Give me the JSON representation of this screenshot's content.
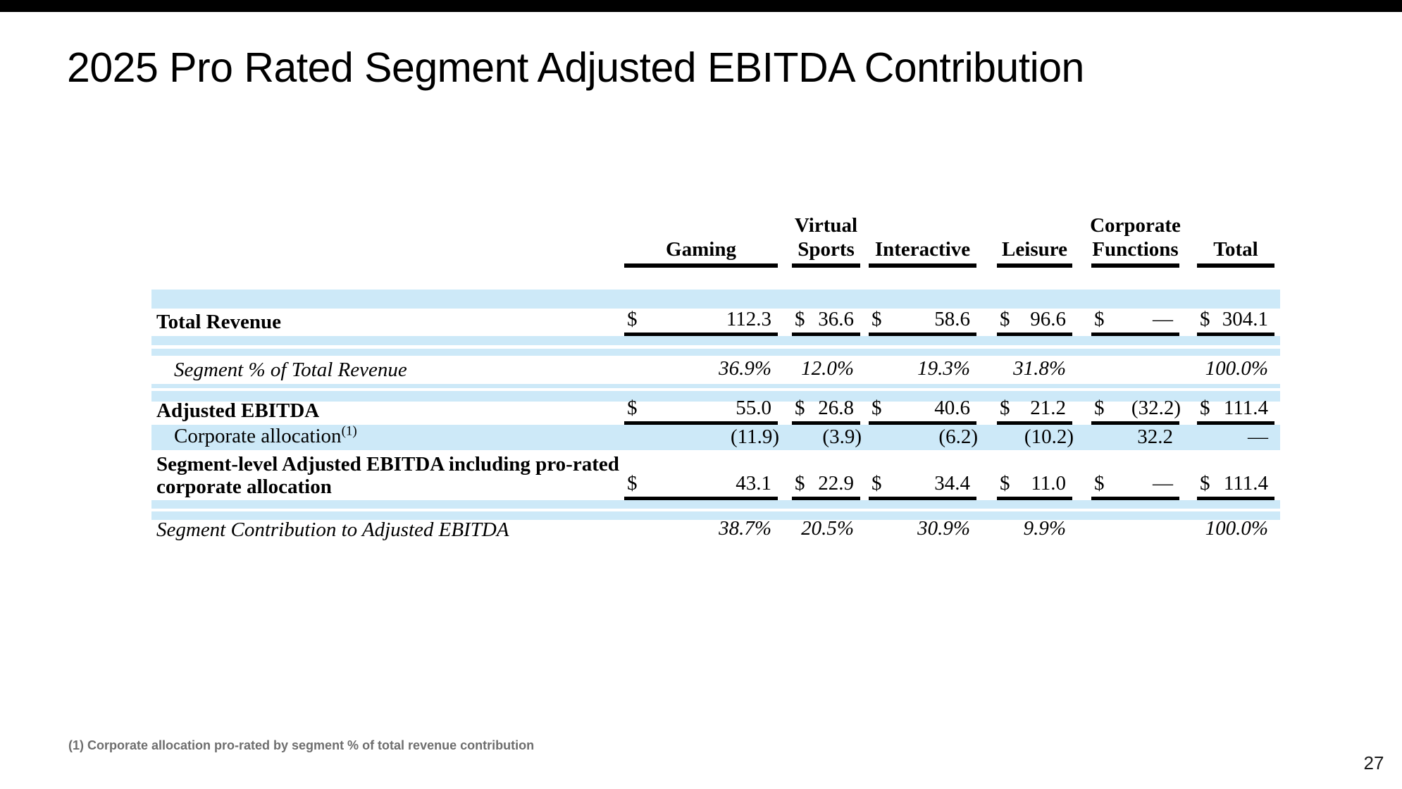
{
  "slide": {
    "title": "2025 Pro Rated Segment Adjusted EBITDA Contribution",
    "footnote": "(1) Corporate allocation pro-rated by segment % of total revenue contribution",
    "page_number": "27"
  },
  "colors": {
    "row_band_blue": "#cde9f8",
    "top_bar": "#000000",
    "rule_black": "#000000",
    "footnote_gray": "#6e6e6e"
  },
  "table": {
    "columns": [
      {
        "line1": "",
        "line2": "Gaming"
      },
      {
        "line1": "Virtual",
        "line2": "Sports"
      },
      {
        "line1": "",
        "line2": "Interactive"
      },
      {
        "line1": "",
        "line2": "Leisure"
      },
      {
        "line1": "Corporate",
        "line2": "Functions"
      },
      {
        "line1": "",
        "line2": "Total"
      }
    ],
    "rows": {
      "total_revenue": {
        "label": "Total Revenue",
        "cells": [
          {
            "currency": "$",
            "amount": "112.3"
          },
          {
            "currency": "$",
            "amount": "36.6"
          },
          {
            "currency": "$",
            "amount": "58.6"
          },
          {
            "currency": "$",
            "amount": "96.6"
          },
          {
            "currency": "$",
            "amount": "—"
          },
          {
            "currency": "$",
            "amount": "304.1"
          }
        ]
      },
      "segment_pct_revenue": {
        "label": "Segment % of Total Revenue",
        "cells": [
          {
            "amount": "36.9%"
          },
          {
            "amount": "12.0%"
          },
          {
            "amount": "19.3%"
          },
          {
            "amount": "31.8%"
          },
          {
            "amount": ""
          },
          {
            "amount": "100.0%"
          }
        ]
      },
      "adjusted_ebitda": {
        "label": "Adjusted EBITDA",
        "cells": [
          {
            "currency": "$",
            "amount": "55.0"
          },
          {
            "currency": "$",
            "amount": "26.8"
          },
          {
            "currency": "$",
            "amount": "40.6"
          },
          {
            "currency": "$",
            "amount": "21.2"
          },
          {
            "currency": "$",
            "amount": "(32.2)"
          },
          {
            "currency": "$",
            "amount": "111.4"
          }
        ]
      },
      "corporate_allocation": {
        "label": "Corporate allocation",
        "label_superscript": "(1)",
        "cells": [
          {
            "amount": "(11.9)"
          },
          {
            "amount": "(3.9)"
          },
          {
            "amount": "(6.2)"
          },
          {
            "amount": "(10.2)"
          },
          {
            "amount": "32.2"
          },
          {
            "amount": "—"
          }
        ]
      },
      "segment_level_ebitda": {
        "label_line1": "Segment-level Adjusted EBITDA including pro-rated",
        "label_line2": "corporate allocation",
        "cells": [
          {
            "currency": "$",
            "amount": "43.1"
          },
          {
            "currency": "$",
            "amount": "22.9"
          },
          {
            "currency": "$",
            "amount": "34.4"
          },
          {
            "currency": "$",
            "amount": "11.0"
          },
          {
            "currency": "$",
            "amount": "—"
          },
          {
            "currency": "$",
            "amount": "111.4"
          }
        ]
      },
      "segment_contribution": {
        "label": "Segment Contribution to Adjusted EBITDA",
        "cells": [
          {
            "amount": "38.7%"
          },
          {
            "amount": "20.5%"
          },
          {
            "amount": "30.9%"
          },
          {
            "amount": "9.9%"
          },
          {
            "amount": ""
          },
          {
            "amount": "100.0%"
          }
        ]
      }
    }
  }
}
